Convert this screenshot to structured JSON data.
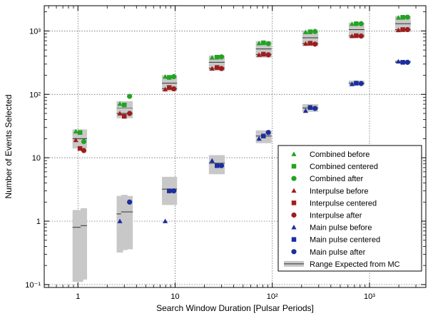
{
  "chart_data": {
    "type": "scatter",
    "title": "",
    "xlabel": "Search Window Duration [Pulsar Periods]",
    "ylabel": "Number of Events Selected",
    "x_scale": "log",
    "y_scale": "log",
    "xlim": [
      0.45,
      3800
    ],
    "ylim": [
      0.09,
      2500
    ],
    "x_tick_labels": [
      {
        "value": 1,
        "label": "1"
      },
      {
        "value": 10,
        "label": "10"
      },
      {
        "value": 100,
        "label": "10²"
      },
      {
        "value": 1000,
        "label": "10³"
      }
    ],
    "y_tick_labels": [
      {
        "value": 0.1,
        "label": "10⁻¹"
      },
      {
        "value": 1,
        "label": "1"
      },
      {
        "value": 10,
        "label": "10"
      },
      {
        "value": 100,
        "label": "10²"
      },
      {
        "value": 1000,
        "label": "10³"
      }
    ],
    "grid": true,
    "legend_position": "bottom-right",
    "series": [
      {
        "name": "Combined before",
        "color": "#22a322",
        "marker": "triangle",
        "points": [
          [
            0.95,
            26
          ],
          [
            2.7,
            71
          ],
          [
            7.9,
            190
          ],
          [
            24,
            380
          ],
          [
            73,
            640
          ],
          [
            220,
            960
          ],
          [
            660,
            1290
          ],
          [
            1980,
            1620
          ]
        ]
      },
      {
        "name": "Combined centered",
        "color": "#22a322",
        "marker": "square",
        "points": [
          [
            1.05,
            25
          ],
          [
            3.0,
            68
          ],
          [
            8.7,
            185
          ],
          [
            27,
            385
          ],
          [
            81,
            650
          ],
          [
            245,
            970
          ],
          [
            730,
            1300
          ],
          [
            2200,
            1640
          ]
        ]
      },
      {
        "name": "Combined after",
        "color": "#22a322",
        "marker": "circle",
        "points": [
          [
            1.15,
            18
          ],
          [
            3.4,
            93
          ],
          [
            9.7,
            190
          ],
          [
            30,
            390
          ],
          [
            91,
            630
          ],
          [
            275,
            980
          ],
          [
            820,
            1300
          ],
          [
            2460,
            1650
          ]
        ]
      },
      {
        "name": "Interpulse before",
        "color": "#a01c1c",
        "marker": "triangle",
        "points": [
          [
            0.95,
            19
          ],
          [
            2.7,
            50
          ],
          [
            7.9,
            120
          ],
          [
            24,
            255
          ],
          [
            73,
            420
          ],
          [
            220,
            630
          ],
          [
            660,
            830
          ],
          [
            1980,
            1030
          ]
        ]
      },
      {
        "name": "Interpulse centered",
        "color": "#a01c1c",
        "marker": "square",
        "points": [
          [
            1.05,
            14
          ],
          [
            3.0,
            45
          ],
          [
            8.7,
            128
          ],
          [
            27,
            265
          ],
          [
            81,
            430
          ],
          [
            245,
            640
          ],
          [
            730,
            840
          ],
          [
            2200,
            1050
          ]
        ]
      },
      {
        "name": "Interpulse after",
        "color": "#a01c1c",
        "marker": "circle",
        "points": [
          [
            1.15,
            13
          ],
          [
            3.4,
            50
          ],
          [
            9.7,
            122
          ],
          [
            30,
            255
          ],
          [
            91,
            420
          ],
          [
            275,
            620
          ],
          [
            820,
            830
          ],
          [
            2460,
            1050
          ]
        ]
      },
      {
        "name": "Main pulse before",
        "color": "#1a2e9e",
        "marker": "triangle",
        "points": [
          [
            2.7,
            1.0
          ],
          [
            7.9,
            1.0
          ],
          [
            24,
            9.0
          ],
          [
            73,
            20
          ],
          [
            220,
            55
          ],
          [
            660,
            145
          ],
          [
            1980,
            330
          ]
        ]
      },
      {
        "name": "Main pulse centered",
        "color": "#1a2e9e",
        "marker": "square",
        "points": [
          [
            8.7,
            3.0
          ],
          [
            27,
            7.5
          ],
          [
            81,
            22
          ],
          [
            245,
            62
          ],
          [
            730,
            150
          ],
          [
            2200,
            320
          ]
        ]
      },
      {
        "name": "Main pulse after",
        "color": "#1a2e9e",
        "marker": "circle",
        "points": [
          [
            3.4,
            2.0
          ],
          [
            9.7,
            3.0
          ],
          [
            30,
            7.5
          ],
          [
            91,
            25
          ],
          [
            275,
            60
          ],
          [
            820,
            148
          ],
          [
            2460,
            320
          ]
        ]
      }
    ],
    "mc_ranges": {
      "name": "Range Expected from MC",
      "color": "#c8c8c8",
      "groups": [
        {
          "x": [
            0.95,
            1.05,
            1.15
          ],
          "low": [
            15,
            15,
            15
          ],
          "high": [
            28,
            28,
            28
          ],
          "mid": [
            23,
            23,
            23
          ]
        },
        {
          "x": [
            2.7,
            3.0,
            3.4
          ],
          "low": [
            43,
            43,
            43
          ],
          "high": [
            78,
            78,
            78
          ],
          "mid": [
            60,
            60,
            60
          ]
        },
        {
          "x": [
            7.9,
            8.7,
            9.7
          ],
          "low": [
            115,
            115,
            115
          ],
          "high": [
            200,
            200,
            200
          ],
          "mid": [
            150,
            150,
            150
          ]
        },
        {
          "x": [
            24,
            27,
            30
          ],
          "low": [
            235,
            235,
            235
          ],
          "high": [
            410,
            410,
            410
          ],
          "mid": [
            320,
            320,
            320
          ]
        },
        {
          "x": [
            73,
            81,
            91
          ],
          "low": [
            380,
            380,
            380
          ],
          "high": [
            690,
            690,
            690
          ],
          "mid": [
            520,
            520,
            520
          ]
        },
        {
          "x": [
            220,
            245,
            275
          ],
          "low": [
            580,
            580,
            580
          ],
          "high": [
            1010,
            1010,
            1010
          ],
          "mid": [
            780,
            780,
            780
          ]
        },
        {
          "x": [
            660,
            730,
            820
          ],
          "low": [
            780,
            780,
            780
          ],
          "high": [
            1350,
            1350,
            1350
          ],
          "mid": [
            1050,
            1050,
            1050
          ]
        },
        {
          "x": [
            1980,
            2200,
            2460
          ],
          "low": [
            960,
            960,
            960
          ],
          "high": [
            1720,
            1720,
            1720
          ],
          "mid": [
            1300,
            1300,
            1300
          ]
        },
        {
          "x": [
            0.95,
            1.05,
            1.15
          ],
          "low": [
            0.11,
            0.11,
            0.12
          ],
          "high": [
            1.5,
            1.5,
            1.6
          ],
          "mid": [
            0.8,
            0.8,
            0.85
          ]
        },
        {
          "x": [
            2.7,
            3.0,
            3.4
          ],
          "low": [
            0.32,
            0.35,
            0.36
          ],
          "high": [
            2.5,
            2.6,
            2.5
          ],
          "mid": [
            1.3,
            1.4,
            1.4
          ]
        },
        {
          "x": [
            7.9,
            8.7,
            9.7
          ],
          "low": [
            1.8,
            1.8,
            1.8
          ],
          "high": [
            5.0,
            5.0,
            5.0
          ],
          "mid": [
            3.2,
            3.2,
            3.2
          ]
        },
        {
          "x": [
            24,
            27,
            30
          ],
          "low": [
            5.5,
            5.5,
            5.5
          ],
          "high": [
            11,
            11,
            11
          ],
          "mid": [
            8.2,
            8.2,
            8.2
          ]
        },
        {
          "x": [
            73,
            81,
            91
          ],
          "low": [
            17,
            17,
            17
          ],
          "high": [
            27,
            27,
            27
          ],
          "mid": [
            22,
            22,
            22
          ]
        },
        {
          "x": [
            220,
            245,
            275
          ],
          "low": [
            53,
            53,
            53
          ],
          "high": [
            70,
            70,
            70
          ],
          "mid": [
            61,
            61,
            61
          ]
        },
        {
          "x": [
            660,
            730,
            820
          ],
          "low": [
            138,
            138,
            138
          ],
          "high": [
            165,
            165,
            165
          ],
          "mid": [
            150,
            150,
            150
          ]
        },
        {
          "x": [
            1980,
            2200,
            2460
          ],
          "low": [
            310,
            310,
            310
          ],
          "high": [
            345,
            345,
            345
          ],
          "mid": [
            325,
            325,
            325
          ]
        },
        {
          "x": [
            0.95,
            1.05,
            1.15
          ],
          "low": [
            14,
            14,
            14
          ],
          "high": [
            27,
            27,
            27
          ],
          "mid": [
            20,
            20,
            20
          ]
        },
        {
          "x": [
            2.7,
            3.0,
            3.4
          ],
          "low": [
            42,
            42,
            42
          ],
          "high": [
            60,
            60,
            60
          ],
          "mid": [
            50,
            50,
            50
          ]
        },
        {
          "x": [
            7.9,
            8.7,
            9.7
          ],
          "low": [
            112,
            112,
            112
          ],
          "high": [
            135,
            135,
            135
          ],
          "mid": [
            123,
            123,
            123
          ]
        },
        {
          "x": [
            24,
            27,
            30
          ],
          "low": [
            240,
            240,
            240
          ],
          "high": [
            275,
            275,
            275
          ],
          "mid": [
            258,
            258,
            258
          ]
        },
        {
          "x": [
            73,
            81,
            91
          ],
          "low": [
            400,
            400,
            400
          ],
          "high": [
            450,
            450,
            450
          ],
          "mid": [
            425,
            425,
            425
          ]
        },
        {
          "x": [
            220,
            245,
            275
          ],
          "low": [
            600,
            600,
            600
          ],
          "high": [
            670,
            670,
            670
          ],
          "mid": [
            635,
            635,
            635
          ]
        },
        {
          "x": [
            660,
            730,
            820
          ],
          "low": [
            800,
            800,
            800
          ],
          "high": [
            880,
            880,
            880
          ],
          "mid": [
            840,
            840,
            840
          ]
        },
        {
          "x": [
            1980,
            2200,
            2460
          ],
          "low": [
            1000,
            1000,
            1000
          ],
          "high": [
            1090,
            1090,
            1090
          ],
          "mid": [
            1045,
            1045,
            1045
          ]
        }
      ]
    }
  }
}
